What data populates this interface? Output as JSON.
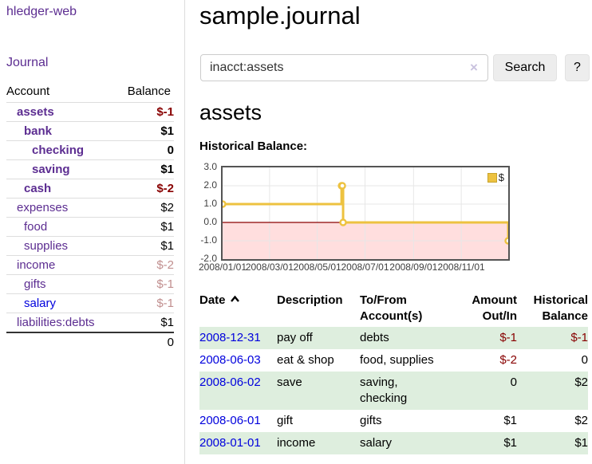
{
  "sidebar": {
    "app_title": "hledger-web",
    "journal_link": "Journal",
    "accounts": {
      "headers": {
        "account": "Account",
        "balance": "Balance"
      },
      "rows": [
        {
          "name": "assets",
          "balance": "$-1"
        },
        {
          "name": "bank",
          "balance": "$1"
        },
        {
          "name": "checking",
          "balance": "0"
        },
        {
          "name": "saving",
          "balance": "$1"
        },
        {
          "name": "cash",
          "balance": "$-2"
        },
        {
          "name": "expenses",
          "balance": "$2"
        },
        {
          "name": "food",
          "balance": "$1"
        },
        {
          "name": "supplies",
          "balance": "$1"
        },
        {
          "name": "income",
          "balance": "$-2"
        },
        {
          "name": "gifts",
          "balance": "$-1"
        },
        {
          "name": "salary",
          "balance": "$-1"
        },
        {
          "name": "liabilities:debts",
          "balance": "$1"
        }
      ],
      "total": "0"
    }
  },
  "main": {
    "title": "sample.journal",
    "search": {
      "value": "inacct:assets",
      "clear_icon": "×",
      "search_button": "Search",
      "help_button": "?"
    },
    "account_heading": "assets",
    "section_heading": "Historical Balance:",
    "register": {
      "headers": {
        "date": "Date",
        "description": "Description",
        "accounts": "To/From Account(s)",
        "amount": "Amount Out/In",
        "balance": "Historical Balance"
      },
      "rows": [
        {
          "date": "2008-12-31",
          "description": "pay off",
          "accounts": "debts",
          "amount": "$-1",
          "balance": "$-1"
        },
        {
          "date": "2008-06-03",
          "description": "eat & shop",
          "accounts": "food, supplies",
          "amount": "$-2",
          "balance": "0"
        },
        {
          "date": "2008-06-02",
          "description": "save",
          "accounts": "saving, checking",
          "amount": "0",
          "balance": "$2"
        },
        {
          "date": "2008-06-01",
          "description": "gift",
          "accounts": "gifts",
          "amount": "$1",
          "balance": "$2"
        },
        {
          "date": "2008-01-01",
          "description": "income",
          "accounts": "salary",
          "amount": "$1",
          "balance": "$1"
        }
      ]
    }
  },
  "colors": {
    "link_purple": "#5c2d91",
    "link_blue": "#0000dd",
    "negative": "#880000",
    "negative_dim": "#c18f8f",
    "row_stripe_green": "#deeede",
    "chart_line": "#EDC240",
    "chart_negative_fill": "#ffdede",
    "chart_zero_line": "#8b0000",
    "chart_grid": "#e7e7e7"
  },
  "chart_data": {
    "type": "line",
    "title": "Historical Balance:",
    "series": [
      {
        "name": "$",
        "color": "#EDC240",
        "step": true,
        "points": [
          [
            "2008-01-01",
            1
          ],
          [
            "2008-06-01",
            2
          ],
          [
            "2008-06-02",
            2
          ],
          [
            "2008-06-03",
            0
          ],
          [
            "2008-12-31",
            -1
          ]
        ]
      }
    ],
    "x_range": [
      "2008-01-01",
      "2008-12-31"
    ],
    "ylim": [
      -2,
      3
    ],
    "y_ticks": [
      3.0,
      2.0,
      1.0,
      0.0,
      -1.0,
      -2.0
    ],
    "x_ticks": [
      "2008/01/01",
      "2008/03/01",
      "2008/05/01",
      "2008/07/01",
      "2008/09/01",
      "2008/11/01"
    ],
    "grid": true,
    "legend_position": "top-right",
    "negative_region_color": "#ffdede",
    "zero_line_color": "#8b0000"
  }
}
